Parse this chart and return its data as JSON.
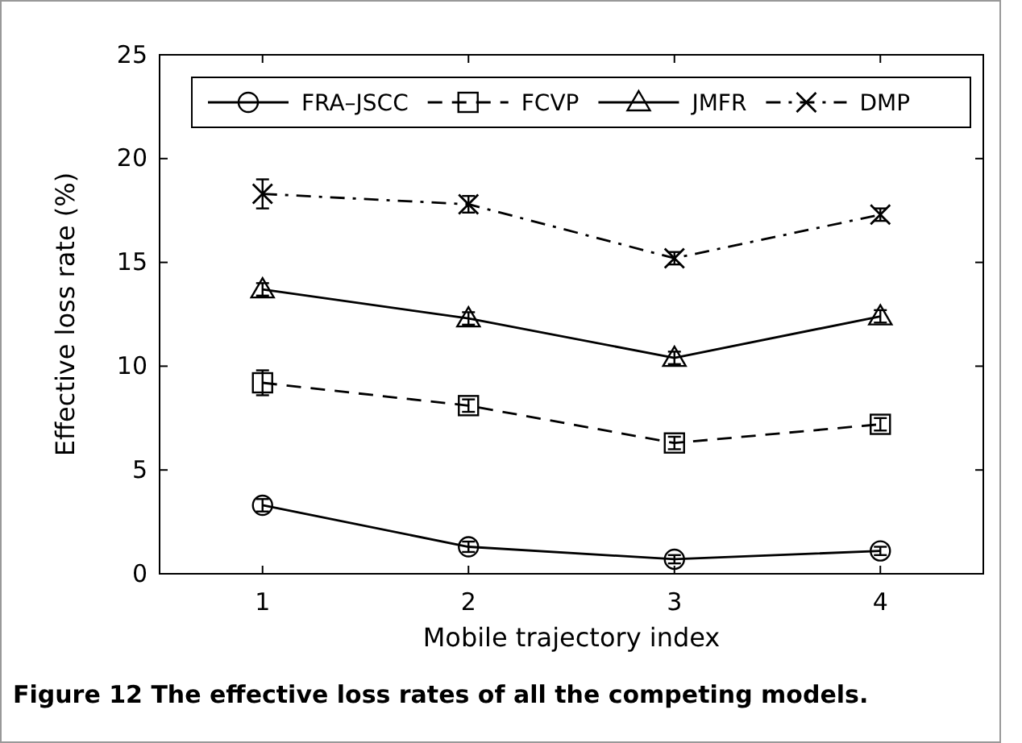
{
  "chart_data": {
    "type": "line",
    "xlabel": "Mobile trajectory index",
    "ylabel": "Effective loss rate (%)",
    "x": [
      1,
      2,
      3,
      4
    ],
    "xlim": [
      0.5,
      4.5
    ],
    "xticks": [
      1,
      2,
      3,
      4
    ],
    "ylim": [
      0,
      25
    ],
    "yticks": [
      0,
      5,
      10,
      15,
      20,
      25
    ],
    "legend": "top",
    "grid": false,
    "series": [
      {
        "name": "FRA–JSCC",
        "color": "#000000",
        "marker": "circle",
        "line_style": "solid",
        "values": [
          3.3,
          1.3,
          0.7,
          1.1
        ],
        "errors": [
          0.3,
          0.25,
          0.2,
          0.2
        ]
      },
      {
        "name": "FCVP",
        "color": "#000000",
        "marker": "square",
        "line_style": "dashed",
        "values": [
          9.2,
          8.1,
          6.3,
          7.2
        ],
        "errors": [
          0.6,
          0.3,
          0.3,
          0.3
        ]
      },
      {
        "name": "JMFR",
        "color": "#000000",
        "marker": "triangle",
        "line_style": "solid",
        "values": [
          13.7,
          12.3,
          10.4,
          12.4
        ],
        "errors": [
          0.3,
          0.3,
          0.3,
          0.3
        ]
      },
      {
        "name": "DMP",
        "color": "#000000",
        "marker": "cross",
        "line_style": "dashdot",
        "values": [
          18.3,
          17.8,
          15.2,
          17.3
        ],
        "errors": [
          0.7,
          0.4,
          0.3,
          0.3
        ]
      }
    ],
    "annotations": [
      "Figure 12 The effective loss rates of all the competing models."
    ]
  }
}
